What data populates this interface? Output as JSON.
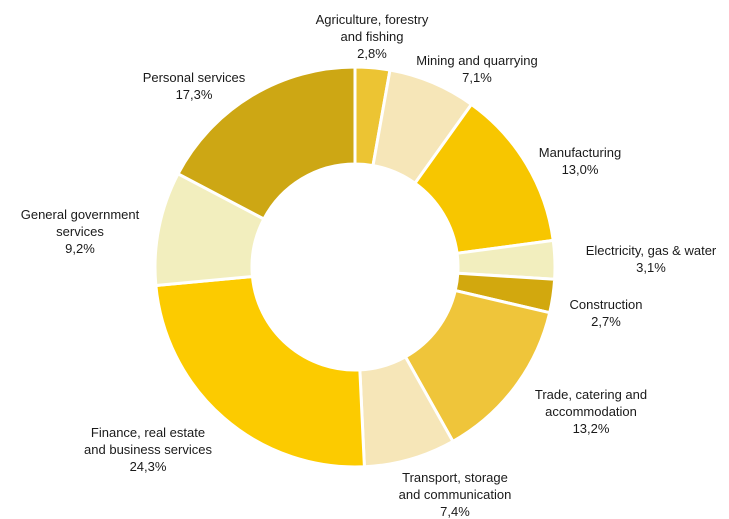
{
  "chart_data": {
    "type": "pie",
    "donut": true,
    "legend": "none",
    "title": "",
    "slices": [
      {
        "lines": [
          "Agriculture, forestry",
          "and fishing"
        ],
        "value_label": "2,8%",
        "value": 2.8,
        "color": "#ECC433"
      },
      {
        "lines": [
          "Mining and quarrying"
        ],
        "value_label": "7,1%",
        "value": 7.1,
        "color": "#F6E6B8"
      },
      {
        "lines": [
          "Manufacturing"
        ],
        "value_label": "13,0%",
        "value": 13.0,
        "color": "#F7C600"
      },
      {
        "lines": [
          "Electricity, gas & water"
        ],
        "value_label": "3,1%",
        "value": 3.1,
        "color": "#F2EEBE"
      },
      {
        "lines": [
          "Construction"
        ],
        "value_label": "2,7%",
        "value": 2.7,
        "color": "#D2A80E"
      },
      {
        "lines": [
          "Trade, catering and",
          "accommodation"
        ],
        "value_label": "13,2%",
        "value": 13.2,
        "color": "#EFC53A"
      },
      {
        "lines": [
          "Transport, storage",
          "and communication"
        ],
        "value_label": "7,4%",
        "value": 7.4,
        "color": "#F6E6B8"
      },
      {
        "lines": [
          "Finance, real estate",
          "and business services"
        ],
        "value_label": "24,3%",
        "value": 24.3,
        "color": "#FCCB00"
      },
      {
        "lines": [
          "General government",
          "services"
        ],
        "value_label": "9,2%",
        "value": 9.2,
        "color": "#F2EEBE"
      },
      {
        "lines": [
          "Personal services"
        ],
        "value_label": "17,3%",
        "value": 17.3,
        "color": "#CDA714"
      }
    ]
  }
}
